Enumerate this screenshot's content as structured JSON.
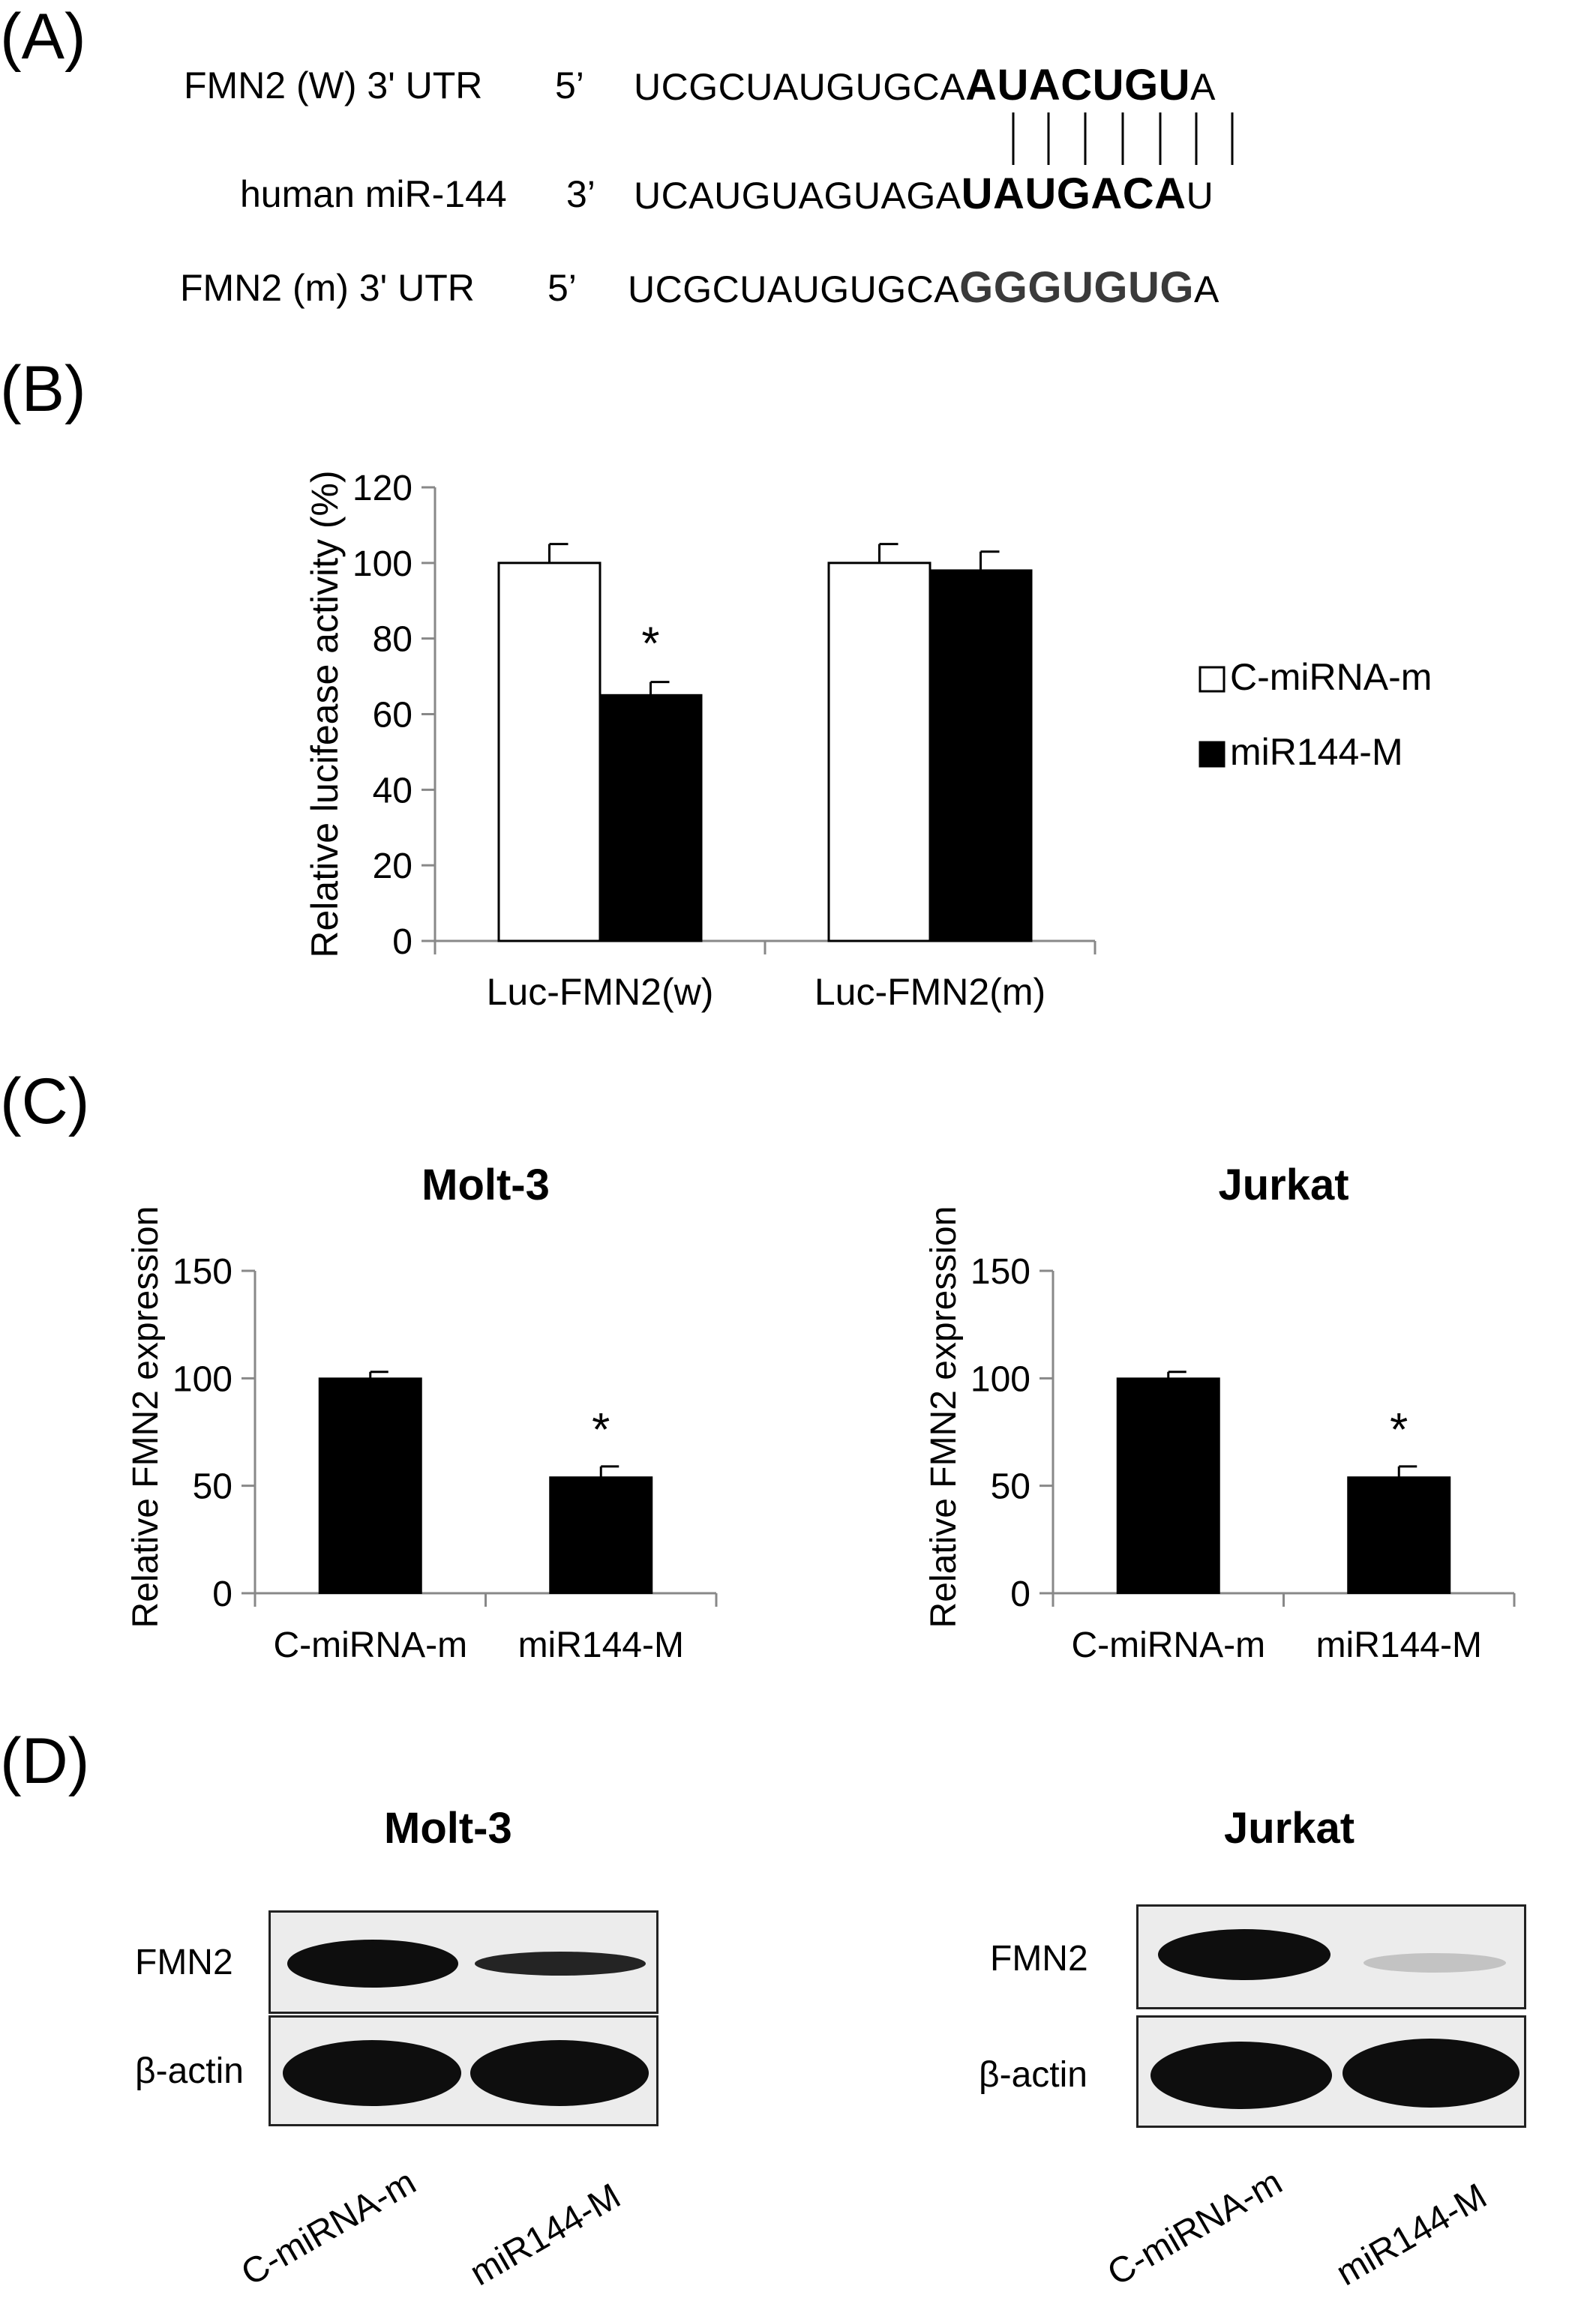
{
  "panels": {
    "a": "(A)",
    "b": "(B)",
    "c": "(C)",
    "d": "(D)"
  },
  "sequences": {
    "wild": {
      "label": "FMN2 (W) 3' UTR",
      "end": "5’",
      "prefix": "UCGCUAUGUGCA",
      "site": "AUACUGU",
      "suffix": "A"
    },
    "mir": {
      "label": "human miR-144",
      "end": "3’",
      "prefix": "UCAUGUAGUAGA",
      "site": "UAUGACA",
      "suffix": "U"
    },
    "mut": {
      "label": "FMN2 (m) 3' UTR",
      "end": "5’",
      "prefix": "UCGCUAUGUGCA",
      "site": "GGGUGUG",
      "suffix": "A"
    }
  },
  "chart_data": [
    {
      "type": "bar",
      "ylabel": "Relative lucifease activity (%)",
      "ylim": [
        0,
        120
      ],
      "yticks": [
        0,
        20,
        40,
        60,
        80,
        100,
        120
      ],
      "categories": [
        "Luc-FMN2(w)",
        "Luc-FMN2(m)"
      ],
      "series": [
        {
          "name": "C-miRNA-m",
          "values": [
            100,
            100
          ],
          "errors": [
            5,
            5
          ],
          "color": "#ffffff"
        },
        {
          "name": "miR144-M",
          "values": [
            65,
            98
          ],
          "errors": [
            3.5,
            5
          ],
          "color": "#000000"
        }
      ],
      "annotations": [
        {
          "category": 0,
          "series": 1,
          "text": "*"
        }
      ],
      "legend": "right"
    },
    {
      "type": "bar",
      "title": "Molt-3",
      "ylabel": "Relative FMN2 expression",
      "ylim": [
        0,
        150
      ],
      "yticks": [
        0,
        50,
        100,
        150
      ],
      "categories": [
        "C-miRNA-m",
        "miR144-M"
      ],
      "values": [
        100,
        54
      ],
      "errors": [
        3,
        5
      ],
      "color": "#000000",
      "annotations": [
        {
          "index": 1,
          "text": "*"
        }
      ]
    },
    {
      "type": "bar",
      "title": "Jurkat",
      "ylabel": "Relative FMN2 expression",
      "ylim": [
        0,
        150
      ],
      "yticks": [
        0,
        50,
        100,
        150
      ],
      "categories": [
        "C-miRNA-m",
        "miR144-M"
      ],
      "values": [
        100,
        54
      ],
      "errors": [
        3,
        5
      ],
      "color": "#000000",
      "annotations": [
        {
          "index": 1,
          "text": "*"
        }
      ]
    }
  ],
  "blots": [
    {
      "title": "Molt-3",
      "rows": [
        "FMN2",
        "β-actin"
      ],
      "lanes": [
        "C-miRNA-m",
        "miR144-M"
      ]
    },
    {
      "title": "Jurkat",
      "rows": [
        "FMN2",
        "β-actin"
      ],
      "lanes": [
        "C-miRNA-m",
        "miR144-M"
      ]
    }
  ]
}
